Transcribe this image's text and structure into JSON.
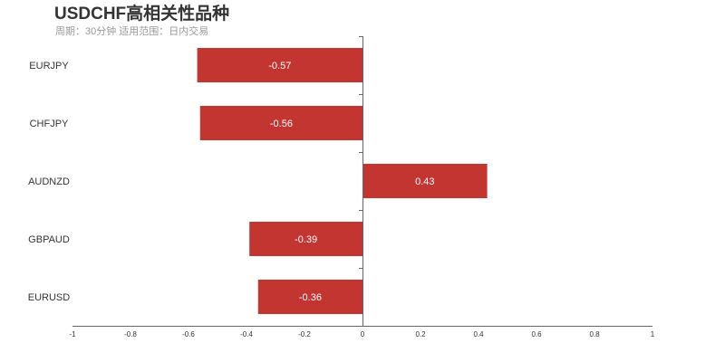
{
  "chart_data": {
    "type": "bar",
    "orientation": "horizontal",
    "title": "USDCHF高相关性品种",
    "subtitle": "周期：30分钟 适用范围：日内交易",
    "categories": [
      "EURJPY",
      "CHFJPY",
      "AUDNZD",
      "GBPAUD",
      "EURUSD"
    ],
    "values": [
      -0.57,
      -0.56,
      0.43,
      -0.39,
      -0.36
    ],
    "xlim": [
      -1,
      1
    ],
    "xticks": [
      "-1",
      "-0.8",
      "-0.6",
      "-0.4",
      "-0.2",
      "0",
      "0.2",
      "0.4",
      "0.6",
      "0.8",
      "1"
    ],
    "grid": false,
    "bar_color": "#c23531",
    "data_labels": true
  }
}
